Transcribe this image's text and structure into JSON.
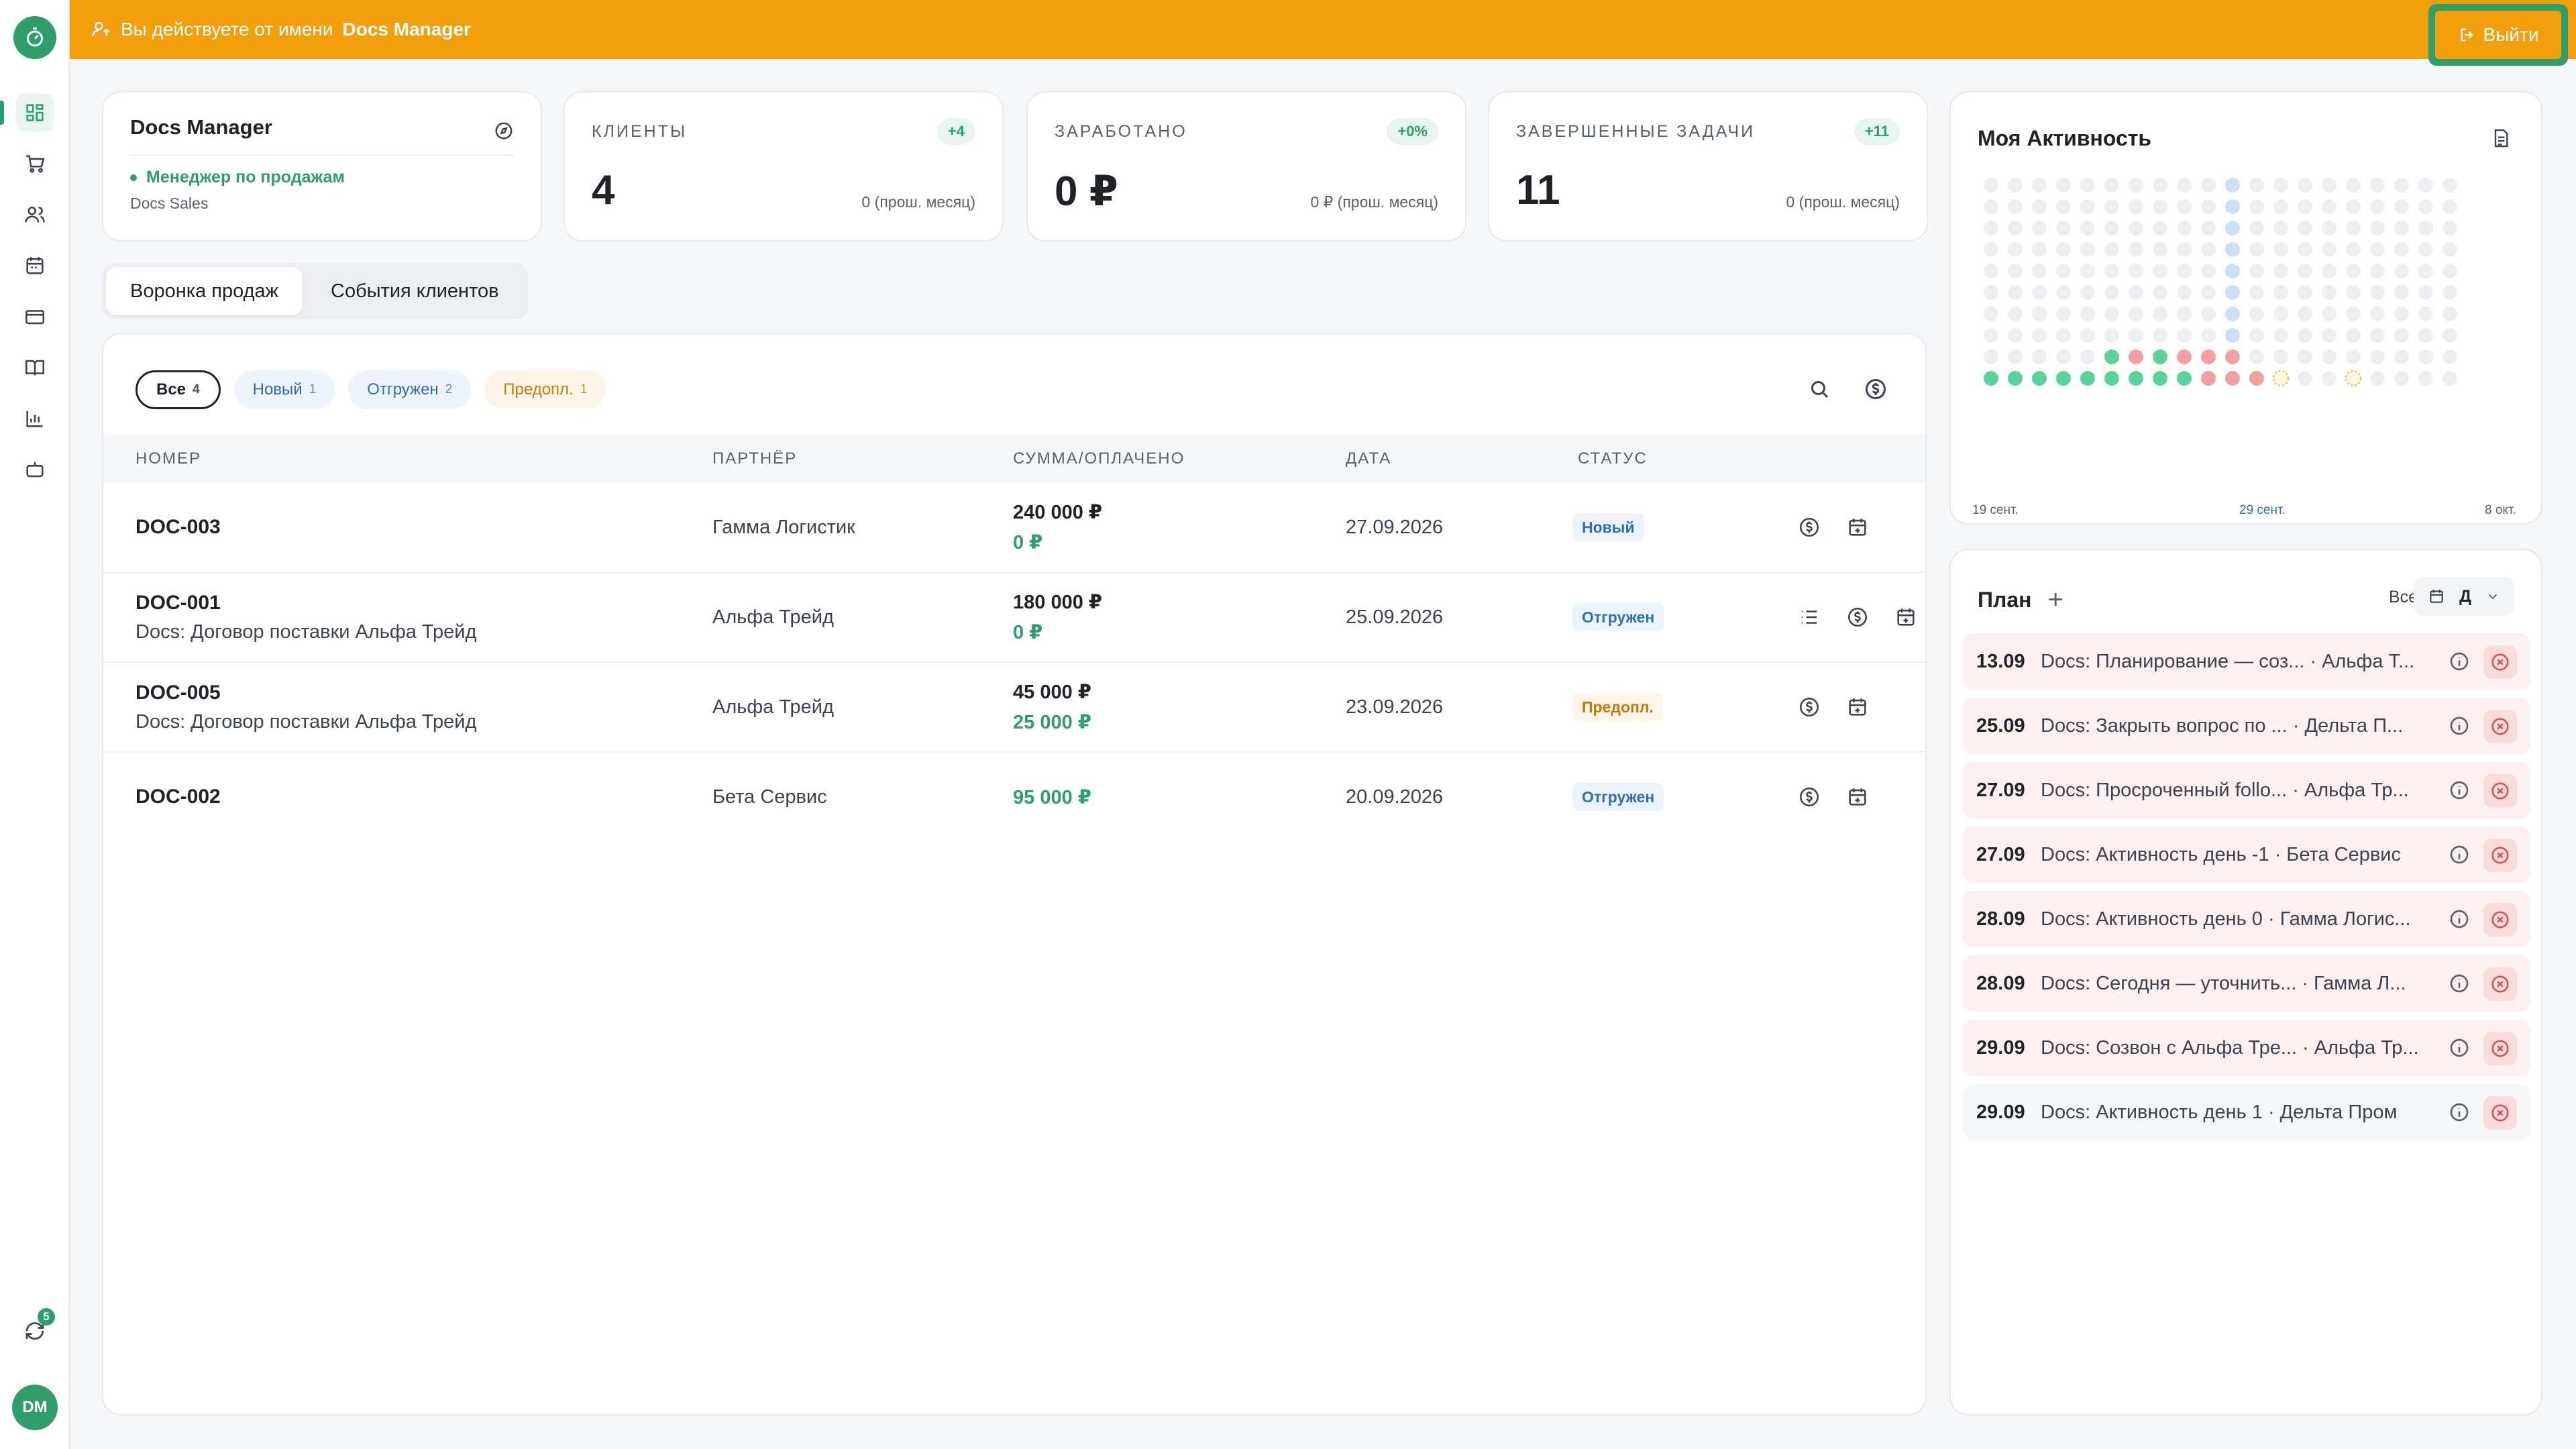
{
  "banner": {
    "prefix": "Вы действуете от имени",
    "user": "Docs Manager",
    "logout_label": "Выйти"
  },
  "sidebar": {
    "items": [
      "dashboard-icon",
      "cart-icon",
      "users-icon",
      "calendar-icon",
      "card-icon",
      "book-icon",
      "chart-icon",
      "bot-icon"
    ],
    "sync_count": "5",
    "avatar": "DM"
  },
  "profile": {
    "name": "Docs Manager",
    "role": "Менеджер по продажам",
    "department": "Docs Sales"
  },
  "stats": [
    {
      "label": "КЛИЕНТЫ",
      "delta": "+4",
      "value": "4",
      "prev": "0 (прош. месяц)"
    },
    {
      "label": "ЗАРАБОТАНО",
      "delta": "+0%",
      "value": "0 ₽",
      "prev": "0 ₽ (прош. месяц)"
    },
    {
      "label": "ЗАВЕРШЕННЫЕ ЗАДАЧИ",
      "delta": "+11",
      "value": "11",
      "prev": "0 (прош. месяц)"
    }
  ],
  "tabs": [
    "Воронка продаж",
    "События клиентов"
  ],
  "filters": [
    {
      "label": "Все",
      "count": "4"
    },
    {
      "label": "Новый",
      "count": "1"
    },
    {
      "label": "Отгружен",
      "count": "2"
    },
    {
      "label": "Предопл.",
      "count": "1"
    }
  ],
  "table": {
    "headers": [
      "НОМЕР",
      "ПАРТНЁР",
      "СУММА/ОПЛАЧЕНО",
      "ДАТА",
      "СТАТУС"
    ],
    "rows": [
      {
        "number": "DOC-003",
        "subtitle": "",
        "partner": "Гамма Логистик",
        "sum": "240 000 ₽",
        "paid": "0 ₽",
        "date": "27.09.2026",
        "status": "Новый"
      },
      {
        "number": "DOC-001",
        "subtitle": "Docs: Договор поставки Альфа Трейд",
        "partner": "Альфа Трейд",
        "sum": "180 000 ₽",
        "paid": "0 ₽",
        "date": "25.09.2026",
        "status": "Отгружен"
      },
      {
        "number": "DOC-005",
        "subtitle": "Docs: Договор поставки Альфа Трейд",
        "partner": "Альфа Трейд",
        "sum": "45 000 ₽",
        "paid": "25 000 ₽",
        "date": "23.09.2026",
        "status": "Предопл."
      },
      {
        "number": "DOC-002",
        "subtitle": "",
        "partner": "Бета Сервис",
        "sum": "",
        "paid": "95 000 ₽",
        "date": "20.09.2026",
        "status": "Отгружен"
      }
    ]
  },
  "activity": {
    "title": "Моя Активность",
    "labels": [
      "19 сент.",
      "29 сент.",
      "8 окт."
    ]
  },
  "plan": {
    "title": "План",
    "filter": "Все",
    "view": "Д",
    "items": [
      {
        "date": "13.09",
        "text": "Docs: Планирование — соз... · Альфа Т..."
      },
      {
        "date": "25.09",
        "text": "Docs: Закрыть вопрос по ... · Дельта П..."
      },
      {
        "date": "27.09",
        "text": "Docs: Просроченный follo... · Альфа Тр..."
      },
      {
        "date": "27.09",
        "text": "Docs: Активность день -1 · Бета Сервис"
      },
      {
        "date": "28.09",
        "text": "Docs: Активность день 0 · Гамма Логис..."
      },
      {
        "date": "28.09",
        "text": "Docs: Сегодня — уточнить... · Гамма Л..."
      },
      {
        "date": "29.09",
        "text": "Docs: Созвон с Альфа Тре... · Альфа Тр..."
      },
      {
        "date": "29.09",
        "text": "Docs: Активность день 1 · Дельта Пром"
      }
    ]
  },
  "colors": {
    "accent": "#2f9e6a",
    "banner": "#f29f0e",
    "status_blue": "#2e6fb8",
    "status_orange": "#c47a07",
    "dot_done": "#58d39a",
    "dot_overdue": "#f2a0a0",
    "dot_today": "#c9e0f7",
    "dot_empty": "#eceef1"
  }
}
